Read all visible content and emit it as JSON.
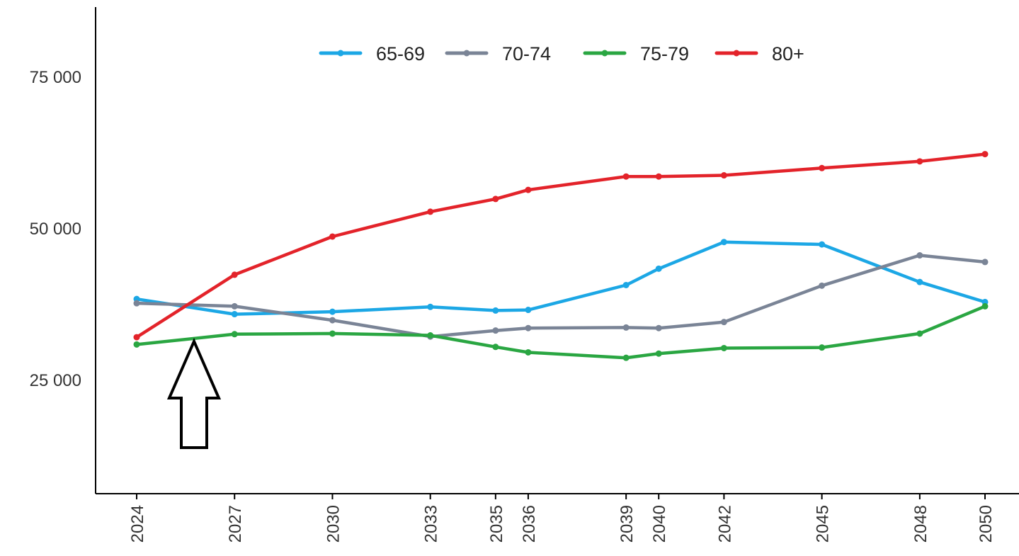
{
  "chart_data": {
    "type": "line",
    "x": [
      2024,
      2027,
      2030,
      2033,
      2035,
      2036,
      2039,
      2040,
      2042,
      2045,
      2048,
      2050
    ],
    "x_tick_labels": [
      "2024",
      "2027",
      "2030",
      "2033",
      "2035",
      "2036",
      "2039",
      "2040",
      "2042",
      "2045",
      "2048",
      "2050"
    ],
    "y_tick_values": [
      25000,
      50000,
      75000
    ],
    "y_tick_labels": [
      "25 000",
      "50 000",
      "75 000"
    ],
    "ylim": [
      9000,
      86000
    ],
    "xlim": [
      2022.7,
      2051.1
    ],
    "grid": false,
    "legend_position": "top",
    "series": [
      {
        "name": "65-69",
        "color": "#1ca7e5",
        "values": [
          38300,
          35800,
          36200,
          37000,
          36400,
          36500,
          40600,
          43300,
          47700,
          47300,
          41100,
          37800
        ]
      },
      {
        "name": "70-74",
        "color": "#7a8496",
        "values": [
          37600,
          37100,
          34800,
          32100,
          33100,
          33500,
          33600,
          33500,
          34500,
          40500,
          45500,
          44400
        ]
      },
      {
        "name": "75-79",
        "color": "#2aa642",
        "values": [
          30800,
          32500,
          32600,
          32300,
          30400,
          29500,
          28600,
          29300,
          30200,
          30300,
          32600,
          37100
        ]
      },
      {
        "name": "80+",
        "color": "#e3232a",
        "values": [
          32000,
          42300,
          48600,
          52700,
          54800,
          56300,
          58500,
          58500,
          58700,
          59900,
          61000,
          62200
        ]
      }
    ]
  }
}
